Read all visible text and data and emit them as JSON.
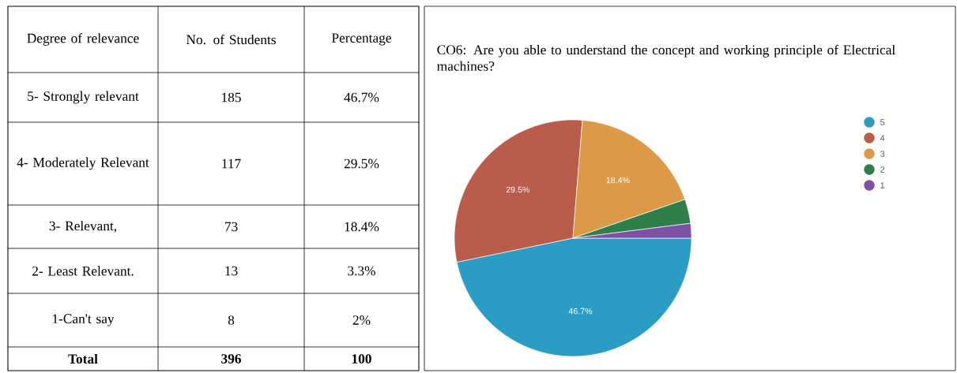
{
  "chart_data": [
    {
      "type": "other",
      "annotations": [
        "Degree of relevance",
        "No. of Students",
        "Percentage",
        "5- Strongly relevant",
        "185",
        "46.7%",
        "4- Moderately Relevant",
        "117",
        "29.5%",
        "3- Relevant,",
        "73",
        "18.4%",
        "2- Least Relevant.",
        "13",
        "3.3%",
        "1-Can't say",
        "8",
        "2%",
        "Total",
        "396",
        "100"
      ]
    },
    {
      "type": "pie",
      "title": "CO6: Are you able to understand the concept and working principle of Electrical machines?",
      "categories": [
        "5",
        "4",
        "3",
        "2",
        "1"
      ],
      "values": [
        46.7,
        29.5,
        18.4,
        3.3,
        2
      ],
      "colors": [
        "#2b9cc4",
        "#b95c4b",
        "#dc9a48",
        "#2f7f4a",
        "#7d51a3"
      ],
      "value_labels": [
        "46.7%",
        "29.5%",
        "18.4%",
        null,
        null
      ],
      "legend": "right"
    }
  ]
}
